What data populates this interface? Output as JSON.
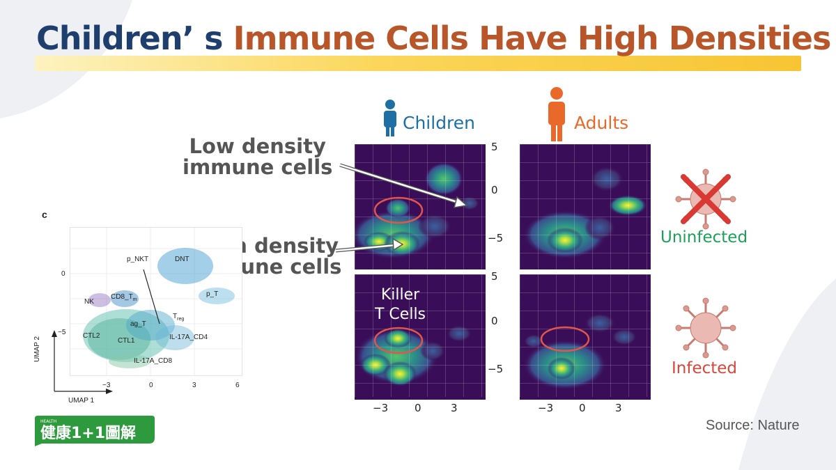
{
  "title": {
    "part1": "Children’ s",
    "part2": "Immune Cells Have High Densities"
  },
  "groups": {
    "children": "Children",
    "adults": "Adults"
  },
  "callouts": {
    "low": [
      "Low density",
      "immune cells"
    ],
    "high": [
      "High density",
      "immune cells"
    ]
  },
  "killer": [
    "Killer",
    "T Cells"
  ],
  "states": {
    "uninfected": "Uninfected",
    "infected": "Infected"
  },
  "density_y_ticks_top": [
    "5",
    "0",
    "−5"
  ],
  "density_y_ticks_bottom": [
    "5",
    "0",
    "−5"
  ],
  "density_x_ticks": [
    "−3",
    "0",
    "3"
  ],
  "umap": {
    "panel_letter": "c",
    "xlabel": "UMAP 1",
    "ylabel": "UMAP 2",
    "x_ticks": [
      "−3",
      "0",
      "3",
      "6"
    ],
    "y_ticks": [
      "0",
      "−5"
    ],
    "cluster_labels": {
      "p_nkt": "p_NKT",
      "dnt": "DNT",
      "p_t": "p_T",
      "nk": "NK",
      "cd8_tm": "CD8_T",
      "cd8_tm_sub": "m",
      "treg": "T",
      "treg_sub": "reg",
      "ag_t": "ag_T",
      "ctl2": "CTL2",
      "ctl1": "CTL1",
      "il17a_cd4": "IL-17A_CD4",
      "il17a_cd8": "IL-17A_CD8"
    }
  },
  "source": "Source: Nature",
  "logo": {
    "small": "HEALTH",
    "text": "健康1+1圖解"
  },
  "colors": {
    "title_navy": "#1e3e6e",
    "title_orange": "#b8562a",
    "children_blue": "#1d6fa5",
    "adults_orange": "#e8692a",
    "uninfected_green": "#1ea05a",
    "infected_red": "#d7473a",
    "panel_bg": "#3a0d58",
    "ellipse_red": "#e0564a"
  }
}
